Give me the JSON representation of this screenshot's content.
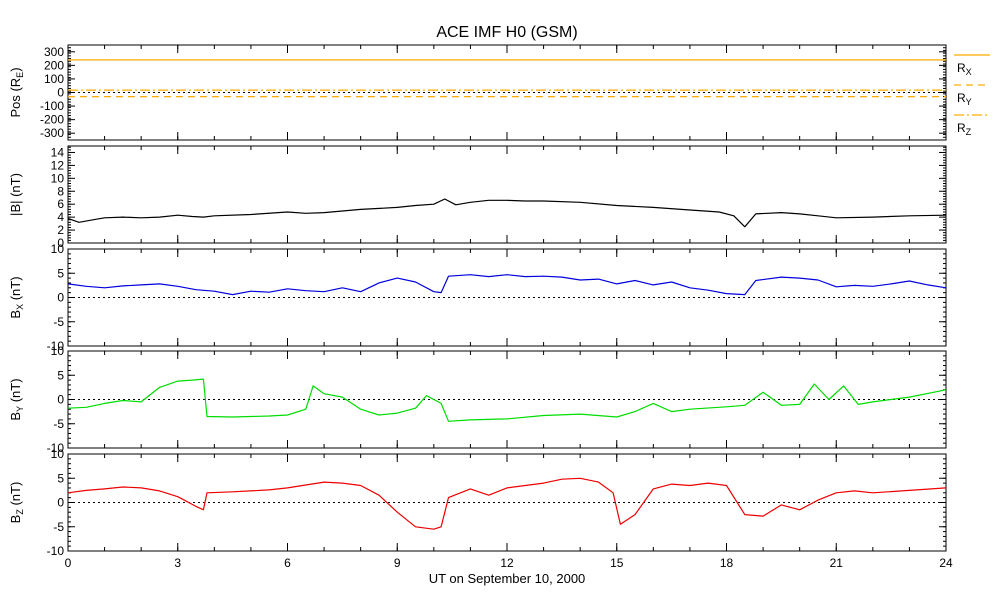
{
  "title": "ACE IMF H0 (GSM)",
  "xlabel": "UT on September 10, 2000",
  "chart_data": {
    "type": "line",
    "title": "ACE IMF H0 (GSM)",
    "xlabel": "UT on September 10, 2000",
    "xlim": [
      0,
      24
    ],
    "xticks": [
      0,
      3,
      6,
      9,
      12,
      15,
      18,
      21,
      24
    ],
    "panels": [
      {
        "id": "pos",
        "ylabel": {
          "main": "Pos (R",
          "sub": "E",
          "end": ")"
        },
        "ylim": [
          -350,
          350
        ],
        "yticks": [
          -300,
          -200,
          -100,
          0,
          100,
          200,
          300
        ],
        "zero_line": true,
        "series": [
          {
            "name": "R",
            "sub": "X",
            "color": "#ffaa00",
            "dash": "none",
            "values": [
              [
                0,
                240
              ],
              [
                24,
                240
              ]
            ]
          },
          {
            "name": "R",
            "sub": "Y",
            "color": "#ffaa00",
            "dash": "7,5",
            "values": [
              [
                0,
                -30
              ],
              [
                24,
                -30
              ]
            ]
          },
          {
            "name": "R",
            "sub": "Z",
            "color": "#ffaa00",
            "dash": "10,3,2,3",
            "values": [
              [
                0,
                18
              ],
              [
                24,
                18
              ]
            ]
          }
        ]
      },
      {
        "id": "btot",
        "ylabel": {
          "main": "|B| (nT)",
          "sub": "",
          "end": ""
        },
        "ylim": [
          0,
          15
        ],
        "yticks": [
          0,
          2,
          4,
          6,
          8,
          10,
          12,
          14
        ],
        "zero_line": false,
        "series": [
          {
            "name": "|B|",
            "color": "#000000",
            "values": [
              [
                0,
                3.8
              ],
              [
                0.3,
                3.2
              ],
              [
                0.7,
                3.6
              ],
              [
                1.0,
                3.9
              ],
              [
                1.5,
                4.0
              ],
              [
                2.0,
                3.9
              ],
              [
                2.5,
                4.0
              ],
              [
                3.0,
                4.3
              ],
              [
                3.4,
                4.1
              ],
              [
                3.7,
                4.0
              ],
              [
                4.0,
                4.2
              ],
              [
                5.0,
                4.4
              ],
              [
                6.0,
                4.8
              ],
              [
                6.5,
                4.6
              ],
              [
                7.0,
                4.7
              ],
              [
                8.0,
                5.2
              ],
              [
                9.0,
                5.5
              ],
              [
                9.5,
                5.8
              ],
              [
                10.0,
                6.0
              ],
              [
                10.3,
                6.8
              ],
              [
                10.6,
                5.9
              ],
              [
                11.0,
                6.3
              ],
              [
                11.5,
                6.6
              ],
              [
                12.0,
                6.6
              ],
              [
                12.5,
                6.5
              ],
              [
                13.0,
                6.5
              ],
              [
                14.0,
                6.3
              ],
              [
                15.0,
                5.8
              ],
              [
                16.0,
                5.5
              ],
              [
                17.0,
                5.1
              ],
              [
                17.8,
                4.8
              ],
              [
                18.2,
                4.2
              ],
              [
                18.5,
                2.5
              ],
              [
                18.8,
                4.5
              ],
              [
                19.5,
                4.7
              ],
              [
                20.0,
                4.5
              ],
              [
                20.5,
                4.2
              ],
              [
                21.0,
                3.9
              ],
              [
                22.0,
                4.0
              ],
              [
                23.0,
                4.2
              ],
              [
                24.0,
                4.3
              ]
            ]
          }
        ]
      },
      {
        "id": "bx",
        "ylabel": {
          "main": "B",
          "sub": "X",
          "end": " (nT)"
        },
        "ylim": [
          -10,
          10
        ],
        "yticks": [
          -10,
          -5,
          0,
          5,
          10
        ],
        "zero_line": true,
        "series": [
          {
            "name": "B",
            "sub": "X",
            "color": "#0000dd",
            "values": [
              [
                0,
                2.8
              ],
              [
                0.5,
                2.3
              ],
              [
                1.0,
                2.0
              ],
              [
                1.5,
                2.4
              ],
              [
                2.0,
                2.6
              ],
              [
                2.5,
                2.8
              ],
              [
                3.0,
                2.3
              ],
              [
                3.5,
                1.6
              ],
              [
                4.0,
                1.3
              ],
              [
                4.5,
                0.6
              ],
              [
                5.0,
                1.3
              ],
              [
                5.5,
                1.1
              ],
              [
                6.0,
                1.8
              ],
              [
                6.5,
                1.4
              ],
              [
                7.0,
                1.2
              ],
              [
                7.5,
                2.0
              ],
              [
                8.0,
                1.2
              ],
              [
                8.5,
                3.0
              ],
              [
                9.0,
                4.0
              ],
              [
                9.5,
                3.2
              ],
              [
                10.0,
                1.2
              ],
              [
                10.2,
                1.0
              ],
              [
                10.4,
                4.4
              ],
              [
                11.0,
                4.7
              ],
              [
                11.5,
                4.3
              ],
              [
                12.0,
                4.7
              ],
              [
                12.5,
                4.3
              ],
              [
                13.0,
                4.4
              ],
              [
                13.5,
                4.2
              ],
              [
                14.0,
                3.6
              ],
              [
                14.5,
                3.8
              ],
              [
                15.0,
                2.8
              ],
              [
                15.5,
                3.5
              ],
              [
                16.0,
                2.6
              ],
              [
                16.5,
                3.2
              ],
              [
                17.0,
                2.0
              ],
              [
                17.5,
                1.5
              ],
              [
                18.0,
                0.8
              ],
              [
                18.5,
                0.6
              ],
              [
                18.8,
                3.5
              ],
              [
                19.5,
                4.2
              ],
              [
                20.0,
                4.0
              ],
              [
                20.5,
                3.6
              ],
              [
                21.0,
                2.2
              ],
              [
                21.5,
                2.5
              ],
              [
                22.0,
                2.3
              ],
              [
                22.5,
                2.8
              ],
              [
                23.0,
                3.4
              ],
              [
                23.5,
                2.6
              ],
              [
                24.0,
                2.0
              ]
            ]
          }
        ]
      },
      {
        "id": "by",
        "ylabel": {
          "main": "B",
          "sub": "Y",
          "end": " (nT)"
        },
        "ylim": [
          -10,
          10
        ],
        "yticks": [
          -10,
          -5,
          0,
          5,
          10
        ],
        "zero_line": true,
        "series": [
          {
            "name": "B",
            "sub": "Y",
            "color": "#00dd00",
            "values": [
              [
                0,
                -1.8
              ],
              [
                0.5,
                -1.6
              ],
              [
                1.0,
                -0.8
              ],
              [
                1.5,
                -0.2
              ],
              [
                2.0,
                -0.5
              ],
              [
                2.5,
                2.5
              ],
              [
                3.0,
                3.8
              ],
              [
                3.4,
                4.0
              ],
              [
                3.7,
                4.2
              ],
              [
                3.8,
                -3.5
              ],
              [
                4.5,
                -3.6
              ],
              [
                5.5,
                -3.4
              ],
              [
                6.0,
                -3.2
              ],
              [
                6.5,
                -2.0
              ],
              [
                6.7,
                2.8
              ],
              [
                7.0,
                1.2
              ],
              [
                7.5,
                0.5
              ],
              [
                8.0,
                -2.0
              ],
              [
                8.5,
                -3.2
              ],
              [
                9.0,
                -2.8
              ],
              [
                9.5,
                -1.8
              ],
              [
                9.8,
                0.8
              ],
              [
                10.2,
                -0.8
              ],
              [
                10.4,
                -4.5
              ],
              [
                11.0,
                -4.2
              ],
              [
                12.0,
                -4.0
              ],
              [
                13.0,
                -3.3
              ],
              [
                14.0,
                -3.0
              ],
              [
                15.0,
                -3.6
              ],
              [
                15.5,
                -2.5
              ],
              [
                16.0,
                -0.8
              ],
              [
                16.5,
                -2.5
              ],
              [
                17.0,
                -2.0
              ],
              [
                18.0,
                -1.5
              ],
              [
                18.5,
                -1.2
              ],
              [
                19.0,
                1.5
              ],
              [
                19.5,
                -1.2
              ],
              [
                20.0,
                -1.0
              ],
              [
                20.4,
                3.2
              ],
              [
                20.8,
                0.0
              ],
              [
                21.2,
                2.8
              ],
              [
                21.6,
                -1.0
              ],
              [
                22.0,
                -0.5
              ],
              [
                23.0,
                0.5
              ],
              [
                24.0,
                2.0
              ]
            ]
          }
        ]
      },
      {
        "id": "bz",
        "ylabel": {
          "main": "B",
          "sub": "Z",
          "end": " (nT)"
        },
        "ylim": [
          -10,
          10
        ],
        "yticks": [
          -10,
          -5,
          0,
          5,
          10
        ],
        "zero_line": true,
        "series": [
          {
            "name": "B",
            "sub": "Z",
            "color": "#ee0000",
            "values": [
              [
                0,
                2.0
              ],
              [
                0.5,
                2.5
              ],
              [
                1.0,
                2.8
              ],
              [
                1.5,
                3.2
              ],
              [
                2.0,
                3.0
              ],
              [
                2.5,
                2.4
              ],
              [
                3.0,
                1.2
              ],
              [
                3.5,
                -0.8
              ],
              [
                3.7,
                -1.5
              ],
              [
                3.8,
                2.0
              ],
              [
                4.5,
                2.2
              ],
              [
                5.5,
                2.6
              ],
              [
                6.0,
                3.0
              ],
              [
                6.5,
                3.6
              ],
              [
                7.0,
                4.2
              ],
              [
                7.5,
                4.0
              ],
              [
                8.0,
                3.5
              ],
              [
                8.5,
                1.5
              ],
              [
                9.0,
                -2.0
              ],
              [
                9.5,
                -5.0
              ],
              [
                10.0,
                -5.5
              ],
              [
                10.2,
                -5.0
              ],
              [
                10.4,
                1.0
              ],
              [
                11.0,
                2.8
              ],
              [
                11.5,
                1.5
              ],
              [
                12.0,
                3.0
              ],
              [
                12.5,
                3.5
              ],
              [
                13.0,
                4.0
              ],
              [
                13.5,
                4.8
              ],
              [
                14.0,
                5.0
              ],
              [
                14.5,
                4.2
              ],
              [
                14.9,
                2.0
              ],
              [
                15.1,
                -4.5
              ],
              [
                15.5,
                -2.5
              ],
              [
                16.0,
                2.8
              ],
              [
                16.5,
                3.8
              ],
              [
                17.0,
                3.5
              ],
              [
                17.5,
                4.0
              ],
              [
                18.0,
                3.5
              ],
              [
                18.5,
                -2.5
              ],
              [
                19.0,
                -2.8
              ],
              [
                19.5,
                -0.5
              ],
              [
                20.0,
                -1.5
              ],
              [
                20.5,
                0.5
              ],
              [
                21.0,
                2.0
              ],
              [
                21.5,
                2.4
              ],
              [
                22.0,
                2.0
              ],
              [
                23.0,
                2.5
              ],
              [
                24.0,
                3.0
              ]
            ]
          }
        ]
      }
    ]
  }
}
